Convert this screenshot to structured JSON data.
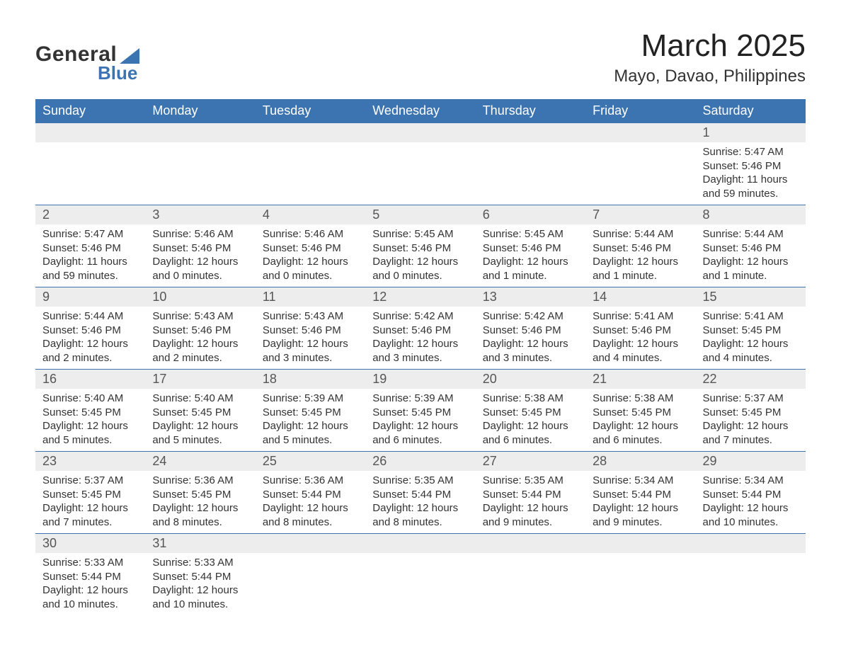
{
  "logo": {
    "text1": "General",
    "text2": "Blue"
  },
  "title": "March 2025",
  "subtitle": "Mayo, Davao, Philippines",
  "colors": {
    "header_bg": "#3c74b1",
    "header_text": "#ffffff",
    "daynum_bg": "#ededed",
    "text": "#333333",
    "row_divider": "#3c74b1",
    "logo_blue": "#3c74b1"
  },
  "fonts": {
    "title_size_pt": 33,
    "subtitle_size_pt": 18,
    "header_size_pt": 14,
    "daynum_size_pt": 14,
    "body_size_pt": 11
  },
  "weekday_headers": [
    "Sunday",
    "Monday",
    "Tuesday",
    "Wednesday",
    "Thursday",
    "Friday",
    "Saturday"
  ],
  "weeks": [
    [
      null,
      null,
      null,
      null,
      null,
      null,
      {
        "day": "1",
        "sunrise": "Sunrise: 5:47 AM",
        "sunset": "Sunset: 5:46 PM",
        "daylight": "Daylight: 11 hours and 59 minutes."
      }
    ],
    [
      {
        "day": "2",
        "sunrise": "Sunrise: 5:47 AM",
        "sunset": "Sunset: 5:46 PM",
        "daylight": "Daylight: 11 hours and 59 minutes."
      },
      {
        "day": "3",
        "sunrise": "Sunrise: 5:46 AM",
        "sunset": "Sunset: 5:46 PM",
        "daylight": "Daylight: 12 hours and 0 minutes."
      },
      {
        "day": "4",
        "sunrise": "Sunrise: 5:46 AM",
        "sunset": "Sunset: 5:46 PM",
        "daylight": "Daylight: 12 hours and 0 minutes."
      },
      {
        "day": "5",
        "sunrise": "Sunrise: 5:45 AM",
        "sunset": "Sunset: 5:46 PM",
        "daylight": "Daylight: 12 hours and 0 minutes."
      },
      {
        "day": "6",
        "sunrise": "Sunrise: 5:45 AM",
        "sunset": "Sunset: 5:46 PM",
        "daylight": "Daylight: 12 hours and 1 minute."
      },
      {
        "day": "7",
        "sunrise": "Sunrise: 5:44 AM",
        "sunset": "Sunset: 5:46 PM",
        "daylight": "Daylight: 12 hours and 1 minute."
      },
      {
        "day": "8",
        "sunrise": "Sunrise: 5:44 AM",
        "sunset": "Sunset: 5:46 PM",
        "daylight": "Daylight: 12 hours and 1 minute."
      }
    ],
    [
      {
        "day": "9",
        "sunrise": "Sunrise: 5:44 AM",
        "sunset": "Sunset: 5:46 PM",
        "daylight": "Daylight: 12 hours and 2 minutes."
      },
      {
        "day": "10",
        "sunrise": "Sunrise: 5:43 AM",
        "sunset": "Sunset: 5:46 PM",
        "daylight": "Daylight: 12 hours and 2 minutes."
      },
      {
        "day": "11",
        "sunrise": "Sunrise: 5:43 AM",
        "sunset": "Sunset: 5:46 PM",
        "daylight": "Daylight: 12 hours and 3 minutes."
      },
      {
        "day": "12",
        "sunrise": "Sunrise: 5:42 AM",
        "sunset": "Sunset: 5:46 PM",
        "daylight": "Daylight: 12 hours and 3 minutes."
      },
      {
        "day": "13",
        "sunrise": "Sunrise: 5:42 AM",
        "sunset": "Sunset: 5:46 PM",
        "daylight": "Daylight: 12 hours and 3 minutes."
      },
      {
        "day": "14",
        "sunrise": "Sunrise: 5:41 AM",
        "sunset": "Sunset: 5:46 PM",
        "daylight": "Daylight: 12 hours and 4 minutes."
      },
      {
        "day": "15",
        "sunrise": "Sunrise: 5:41 AM",
        "sunset": "Sunset: 5:45 PM",
        "daylight": "Daylight: 12 hours and 4 minutes."
      }
    ],
    [
      {
        "day": "16",
        "sunrise": "Sunrise: 5:40 AM",
        "sunset": "Sunset: 5:45 PM",
        "daylight": "Daylight: 12 hours and 5 minutes."
      },
      {
        "day": "17",
        "sunrise": "Sunrise: 5:40 AM",
        "sunset": "Sunset: 5:45 PM",
        "daylight": "Daylight: 12 hours and 5 minutes."
      },
      {
        "day": "18",
        "sunrise": "Sunrise: 5:39 AM",
        "sunset": "Sunset: 5:45 PM",
        "daylight": "Daylight: 12 hours and 5 minutes."
      },
      {
        "day": "19",
        "sunrise": "Sunrise: 5:39 AM",
        "sunset": "Sunset: 5:45 PM",
        "daylight": "Daylight: 12 hours and 6 minutes."
      },
      {
        "day": "20",
        "sunrise": "Sunrise: 5:38 AM",
        "sunset": "Sunset: 5:45 PM",
        "daylight": "Daylight: 12 hours and 6 minutes."
      },
      {
        "day": "21",
        "sunrise": "Sunrise: 5:38 AM",
        "sunset": "Sunset: 5:45 PM",
        "daylight": "Daylight: 12 hours and 6 minutes."
      },
      {
        "day": "22",
        "sunrise": "Sunrise: 5:37 AM",
        "sunset": "Sunset: 5:45 PM",
        "daylight": "Daylight: 12 hours and 7 minutes."
      }
    ],
    [
      {
        "day": "23",
        "sunrise": "Sunrise: 5:37 AM",
        "sunset": "Sunset: 5:45 PM",
        "daylight": "Daylight: 12 hours and 7 minutes."
      },
      {
        "day": "24",
        "sunrise": "Sunrise: 5:36 AM",
        "sunset": "Sunset: 5:45 PM",
        "daylight": "Daylight: 12 hours and 8 minutes."
      },
      {
        "day": "25",
        "sunrise": "Sunrise: 5:36 AM",
        "sunset": "Sunset: 5:44 PM",
        "daylight": "Daylight: 12 hours and 8 minutes."
      },
      {
        "day": "26",
        "sunrise": "Sunrise: 5:35 AM",
        "sunset": "Sunset: 5:44 PM",
        "daylight": "Daylight: 12 hours and 8 minutes."
      },
      {
        "day": "27",
        "sunrise": "Sunrise: 5:35 AM",
        "sunset": "Sunset: 5:44 PM",
        "daylight": "Daylight: 12 hours and 9 minutes."
      },
      {
        "day": "28",
        "sunrise": "Sunrise: 5:34 AM",
        "sunset": "Sunset: 5:44 PM",
        "daylight": "Daylight: 12 hours and 9 minutes."
      },
      {
        "day": "29",
        "sunrise": "Sunrise: 5:34 AM",
        "sunset": "Sunset: 5:44 PM",
        "daylight": "Daylight: 12 hours and 10 minutes."
      }
    ],
    [
      {
        "day": "30",
        "sunrise": "Sunrise: 5:33 AM",
        "sunset": "Sunset: 5:44 PM",
        "daylight": "Daylight: 12 hours and 10 minutes."
      },
      {
        "day": "31",
        "sunrise": "Sunrise: 5:33 AM",
        "sunset": "Sunset: 5:44 PM",
        "daylight": "Daylight: 12 hours and 10 minutes."
      },
      null,
      null,
      null,
      null,
      null
    ]
  ]
}
